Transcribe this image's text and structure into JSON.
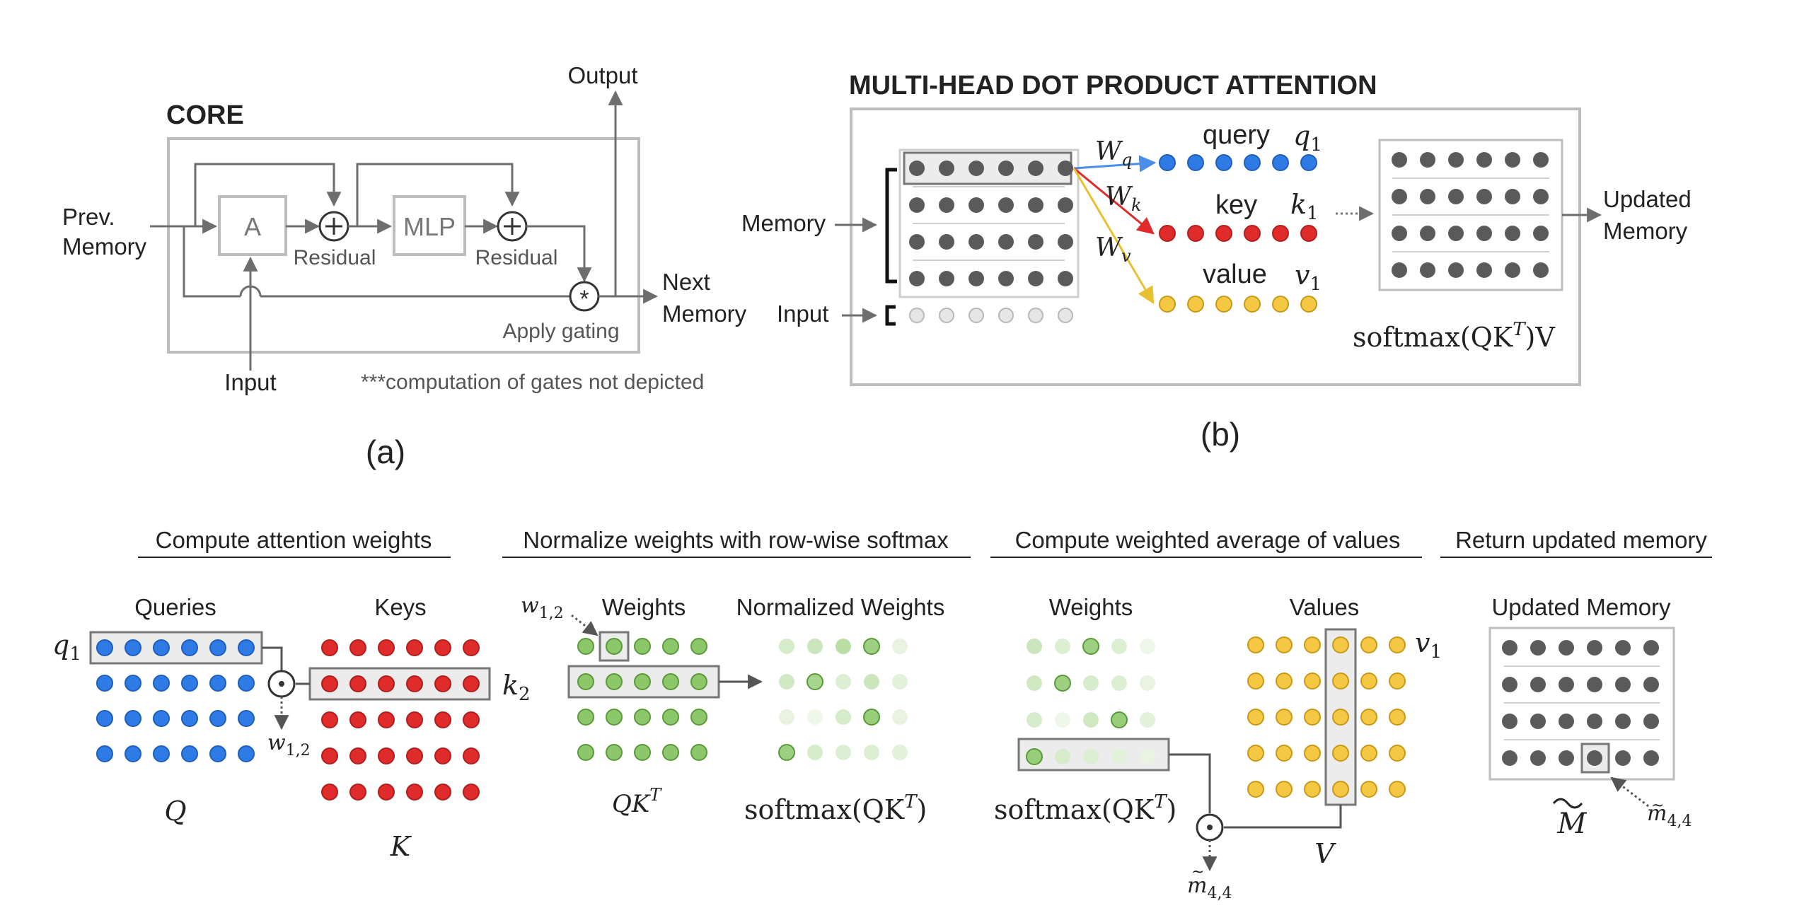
{
  "panel_a": {
    "title": "CORE",
    "prev_memory_line1": "Prev.",
    "prev_memory_line2": "Memory",
    "attention_block": "A",
    "mlp_block": "MLP",
    "residual_1": "Residual",
    "residual_2": "Residual",
    "apply_gating": "Apply gating",
    "input_label": "Input",
    "output_label": "Output",
    "next_memory_line1": "Next",
    "next_memory_line2": "Memory",
    "footnote": "***computation of gates not depicted",
    "caption": "(a)"
  },
  "panel_b": {
    "title": "MULTI-HEAD DOT PRODUCT ATTENTION",
    "memory_label": "Memory",
    "input_label": "Input",
    "wq": "W",
    "wq_sub": "q",
    "wk": "W",
    "wk_sub": "k",
    "wv": "W",
    "wv_sub": "v",
    "query_label": "query",
    "key_label": "key",
    "value_label": "value",
    "q1": "q",
    "q1_sub": "1",
    "k1": "k",
    "k1_sub": "1",
    "v1": "v",
    "v1_sub": "1",
    "updated_memory_line1": "Updated",
    "updated_memory_line2": "Memory",
    "softmax_formula": "softmax(QK",
    "softmax_sup": "T",
    "softmax_tail": ")V",
    "caption": "(b)"
  },
  "panel_c": {
    "step1_title": "Compute attention weights",
    "step2_title": "Normalize weights with row-wise softmax",
    "step3_title": "Compute weighted average of values",
    "step4_title": "Return updated memory",
    "queries_label": "Queries",
    "keys_label": "Keys",
    "weights_label": "Weights",
    "normalized_weights_label": "Normalized Weights",
    "weights2_label": "Weights",
    "values_label": "Values",
    "updated_memory_label": "Updated Memory",
    "q1": "q",
    "q1_sub": "1",
    "k2": "k",
    "k2_sub": "2",
    "w12": "w",
    "w12_sub": "1,2",
    "w12b": "w",
    "w12b_sub": "1,2",
    "v1": "v",
    "v1_sub": "1",
    "Q": "Q",
    "K": "K",
    "V": "V",
    "qkt": "QK",
    "qkt_sup": "T",
    "softmax_a": "softmax(QK",
    "softmax_a_sup": "T",
    "softmax_a_tail": ")",
    "softmax_b": "softmax(QK",
    "softmax_b_sup": "T",
    "softmax_b_tail": ")",
    "m44": "m",
    "m44_sub": "4,4",
    "m44b": "m",
    "m44b_sub": "4,4",
    "M": "M"
  },
  "colors": {
    "query_blue": "#2f7be6",
    "key_red": "#e02b2b",
    "value_yellow": "#f4c842",
    "memory_gray": "#5a5a5a",
    "weight_green": "#8cc86a",
    "line_gray": "#6e6e6e",
    "box_gray": "#bdbdbd"
  }
}
